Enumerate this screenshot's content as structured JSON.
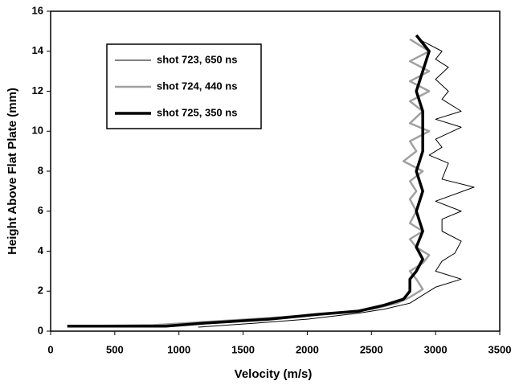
{
  "chart_data": {
    "type": "line",
    "x_label": "Velocity (m/s)",
    "y_label": "Height Above Flat Plate (mm)",
    "xlim": [
      0,
      3500
    ],
    "xticks": [
      0,
      500,
      1000,
      1500,
      2000,
      2500,
      3000,
      3500
    ],
    "ylim": [
      0,
      16
    ],
    "yticks": [
      0,
      2,
      4,
      6,
      8,
      10,
      12,
      14,
      16
    ],
    "grid": false,
    "legend": "upper left",
    "series": [
      {
        "name": "shot 723, 650 ns",
        "color": "#000000",
        "width": 1,
        "x": [
          1150,
          1600,
          2000,
          2400,
          2600,
          2800,
          2900,
          3000,
          3200,
          3000,
          3050,
          3150,
          3200,
          3050,
          3050,
          3200,
          3000,
          3300,
          3050,
          3100,
          2950,
          3050,
          3000,
          3200,
          3000,
          3200,
          3050,
          3100,
          3000,
          3100,
          3000,
          3050,
          2900,
          2850
        ],
        "values": [
          0.2,
          0.4,
          0.6,
          0.9,
          1.1,
          1.4,
          1.8,
          2.2,
          2.6,
          3.0,
          3.5,
          3.9,
          4.5,
          5.0,
          5.6,
          6.0,
          6.5,
          7.2,
          7.6,
          8.4,
          8.8,
          9.2,
          9.6,
          10.2,
          10.6,
          11.0,
          11.6,
          12.0,
          12.6,
          13.2,
          13.6,
          14.0,
          14.5,
          14.8
        ]
      },
      {
        "name": "shot 724, 440 ns",
        "color": "#a0a0a0",
        "width": 2.5,
        "x": [
          150,
          800,
          1300,
          1800,
          2200,
          2500,
          2700,
          2800,
          2900,
          2850,
          2800,
          2900,
          2950,
          2850,
          2800,
          2900,
          2800,
          2850,
          2800,
          2850,
          2800,
          2900,
          2750,
          2850,
          2800,
          2950,
          2800,
          2900,
          2800,
          2950,
          2800,
          2950,
          2800,
          2950,
          2800
        ],
        "values": [
          0.25,
          0.3,
          0.5,
          0.7,
          0.9,
          1.1,
          1.4,
          1.7,
          2.1,
          2.6,
          3.0,
          3.4,
          3.8,
          4.2,
          4.6,
          5.0,
          5.4,
          6.0,
          6.6,
          7.0,
          7.5,
          8.0,
          8.5,
          9.0,
          9.5,
          10.0,
          10.4,
          11.0,
          11.5,
          12.0,
          12.5,
          13.0,
          13.5,
          14.0,
          14.6
        ]
      },
      {
        "name": "shot 725, 350 ns",
        "color": "#000000",
        "width": 3.5,
        "x": [
          130,
          900,
          1200,
          1700,
          2100,
          2400,
          2600,
          2750,
          2800,
          2800,
          2850,
          2900,
          2850,
          2900,
          2850,
          2900,
          2850,
          2900,
          2900,
          2900,
          2850,
          2900,
          2950,
          2850
        ],
        "values": [
          0.25,
          0.25,
          0.4,
          0.6,
          0.85,
          1.0,
          1.3,
          1.6,
          2.0,
          2.6,
          3.0,
          3.6,
          4.2,
          5.0,
          6.0,
          7.0,
          8.0,
          9.0,
          10.0,
          11.0,
          12.0,
          13.0,
          14.0,
          14.8
        ]
      }
    ]
  }
}
